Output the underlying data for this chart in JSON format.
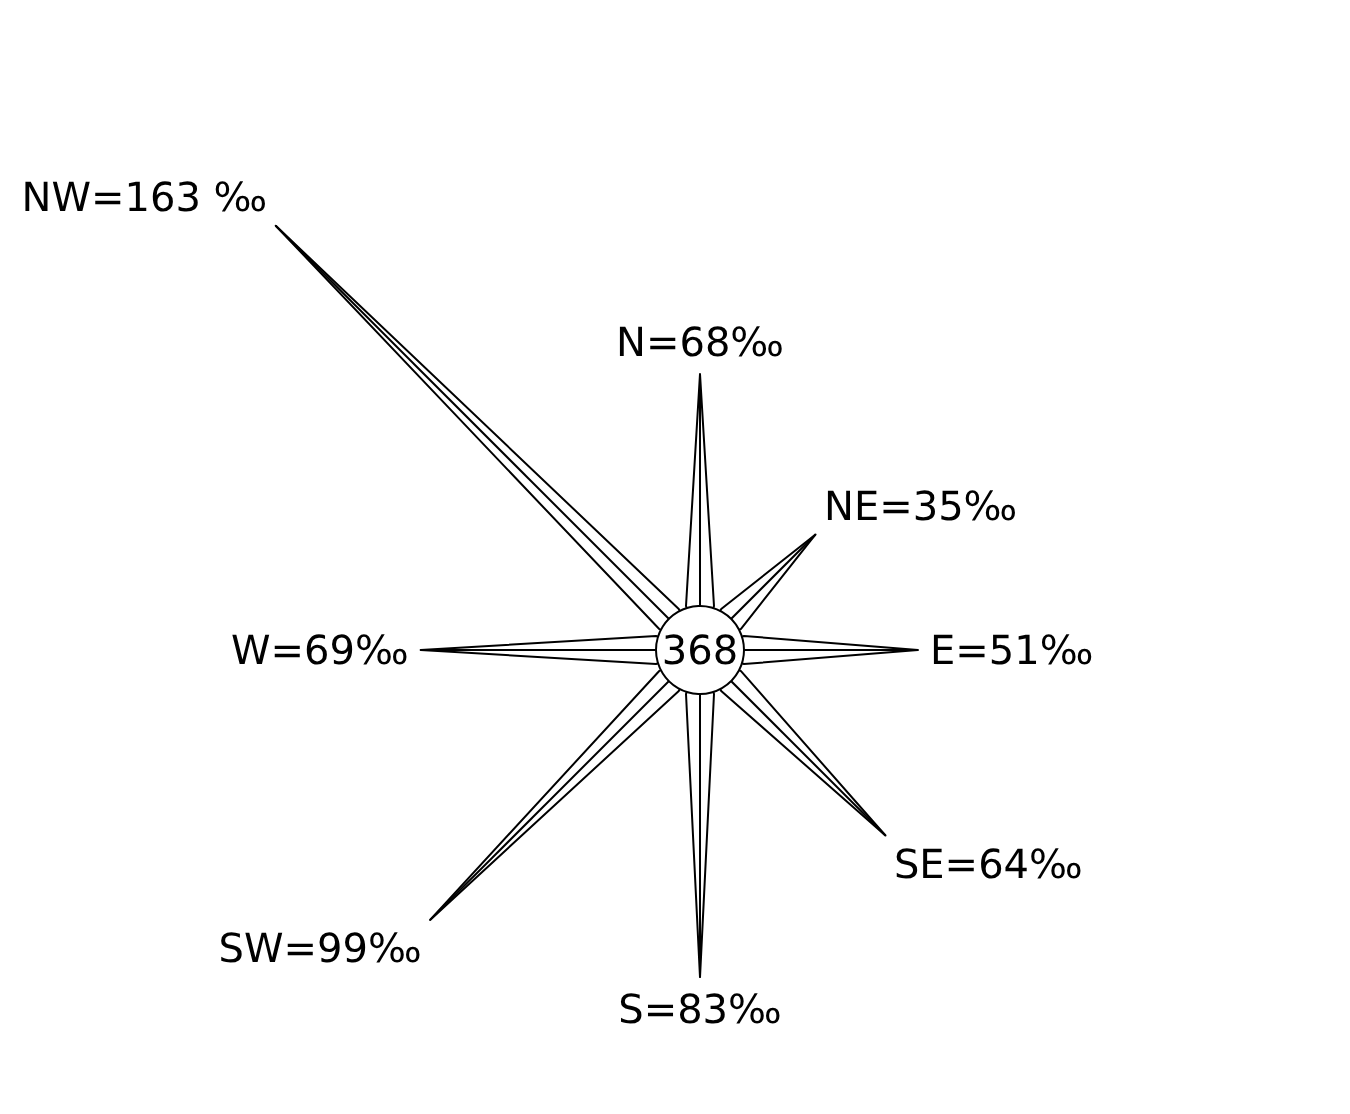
{
  "chart_data": {
    "type": "other",
    "categories": [
      "N",
      "NE",
      "E",
      "SE",
      "S",
      "SW",
      "W",
      "NW"
    ],
    "values": [
      68,
      35,
      51,
      64,
      83,
      99,
      69,
      163
    ],
    "value_labels": [
      "=68‰",
      "=35‰",
      "=51‰",
      "=64‰",
      "=83‰",
      "=99‰",
      "=69‰",
      "=163 ‰"
    ],
    "annotations": [
      "368"
    ]
  }
}
